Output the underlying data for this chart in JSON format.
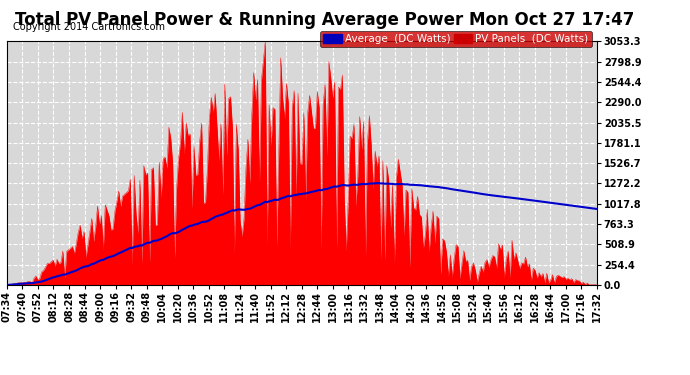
{
  "title": "Total PV Panel Power & Running Average Power Mon Oct 27 17:47",
  "copyright": "Copyright 2014 Cartronics.com",
  "yticks": [
    0.0,
    254.4,
    508.9,
    763.3,
    1017.8,
    1272.2,
    1526.7,
    1781.1,
    2035.5,
    2290.0,
    2544.4,
    2798.9,
    3053.3
  ],
  "ymax": 3053.3,
  "ymin": 0.0,
  "bg_color": "#ffffff",
  "plot_bg_color": "#d8d8d8",
  "grid_color": "#ffffff",
  "pv_color": "#ff0000",
  "avg_color": "#0000cc",
  "xtick_labels": [
    "07:34",
    "07:40",
    "07:52",
    "08:12",
    "08:28",
    "08:44",
    "09:00",
    "09:16",
    "09:32",
    "09:48",
    "10:04",
    "10:20",
    "10:36",
    "10:52",
    "11:08",
    "11:24",
    "11:40",
    "11:52",
    "12:12",
    "12:28",
    "12:44",
    "13:00",
    "13:16",
    "13:32",
    "13:48",
    "14:04",
    "14:20",
    "14:36",
    "14:52",
    "15:08",
    "15:24",
    "15:40",
    "15:56",
    "16:12",
    "16:28",
    "16:44",
    "17:00",
    "17:16",
    "17:32"
  ],
  "title_fontsize": 12,
  "copyright_fontsize": 7,
  "tick_fontsize": 7,
  "legend_fontsize": 7.5
}
